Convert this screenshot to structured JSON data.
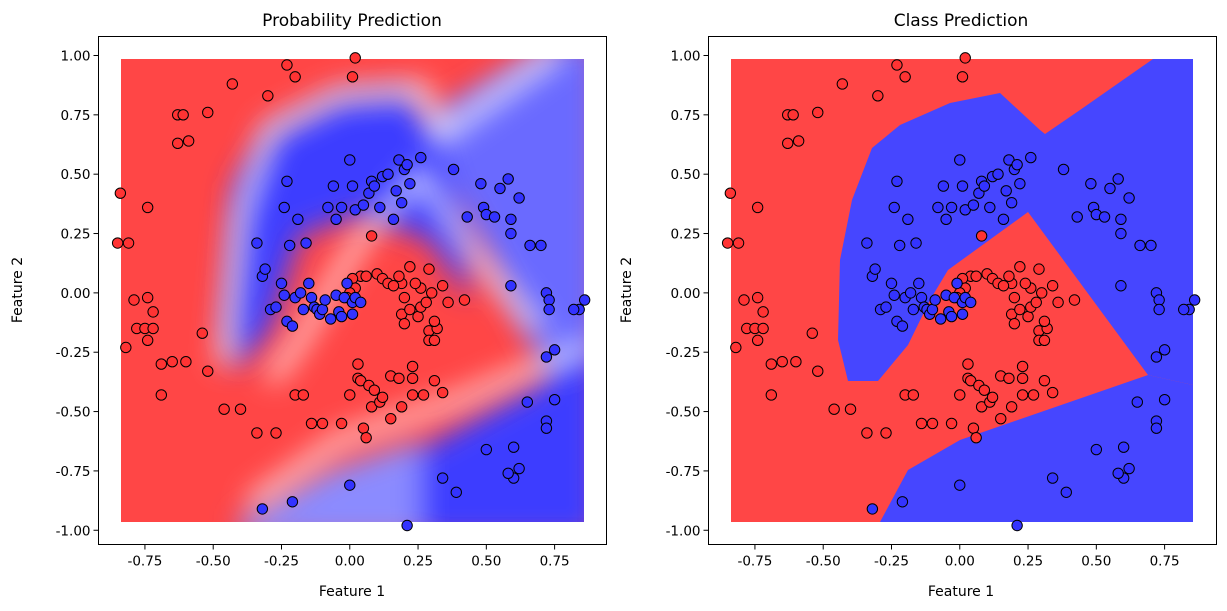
{
  "colors": {
    "class0": "#ff3333",
    "class1": "#3333ff",
    "region_red": "#ff4646",
    "region_blue": "#4646ff",
    "marker_edge": "#000000"
  },
  "chart_data": [
    {
      "type": "scatter",
      "title": "Probability Prediction",
      "xlabel": "Feature 1",
      "ylabel": "Feature 2",
      "background": "probability-gradient",
      "xlim": [
        -0.92,
        0.94
      ],
      "ylim": [
        -1.06,
        1.08
      ],
      "xticks": [
        "-0.75",
        "-0.50",
        "-0.25",
        "0.00",
        "0.25",
        "0.50",
        "0.75"
      ],
      "yticks": [
        "1.00",
        "0.75",
        "0.50",
        "0.25",
        "0.00",
        "-0.25",
        "-0.50",
        "-0.75",
        "-1.00"
      ],
      "grid": false,
      "legend": "none"
    },
    {
      "type": "scatter",
      "title": "Class Prediction",
      "xlabel": "Feature 1",
      "ylabel": "Feature 2",
      "background": "class-regions",
      "xlim": [
        -0.92,
        0.94
      ],
      "ylim": [
        -1.06,
        1.08
      ],
      "xticks": [
        "-0.75",
        "-0.50",
        "-0.25",
        "0.00",
        "0.25",
        "0.50",
        "0.75"
      ],
      "yticks": [
        "1.00",
        "0.75",
        "0.50",
        "0.25",
        "0.00",
        "-0.25",
        "-0.50",
        "-0.75",
        "-1.00"
      ],
      "grid": false,
      "legend": "none"
    }
  ],
  "points": {
    "class0": [
      [
        -0.85,
        0.21
      ],
      [
        -0.84,
        0.42
      ],
      [
        -0.81,
        0.21
      ],
      [
        -0.82,
        -0.23
      ],
      [
        -0.79,
        -0.03
      ],
      [
        -0.78,
        -0.15
      ],
      [
        -0.75,
        -0.15
      ],
      [
        -0.74,
        -0.2
      ],
      [
        -0.74,
        -0.02
      ],
      [
        -0.74,
        0.36
      ],
      [
        -0.72,
        -0.08
      ],
      [
        -0.72,
        -0.15
      ],
      [
        -0.69,
        -0.3
      ],
      [
        -0.69,
        -0.43
      ],
      [
        -0.65,
        -0.29
      ],
      [
        -0.63,
        0.63
      ],
      [
        -0.63,
        0.75
      ],
      [
        -0.61,
        0.75
      ],
      [
        -0.6,
        -0.29
      ],
      [
        -0.59,
        0.64
      ],
      [
        -0.54,
        -0.17
      ],
      [
        -0.52,
        -0.33
      ],
      [
        -0.52,
        0.76
      ],
      [
        -0.46,
        -0.49
      ],
      [
        -0.43,
        0.88
      ],
      [
        -0.4,
        -0.49
      ],
      [
        -0.34,
        -0.59
      ],
      [
        -0.3,
        0.83
      ],
      [
        -0.27,
        -0.59
      ],
      [
        -0.23,
        0.96
      ],
      [
        -0.2,
        0.91
      ],
      [
        -0.2,
        -0.43
      ],
      [
        -0.17,
        -0.43
      ],
      [
        -0.14,
        -0.55
      ],
      [
        -0.1,
        -0.55
      ],
      [
        -0.03,
        -0.55
      ],
      [
        0.0,
        -0.43
      ],
      [
        0.01,
        0.91
      ],
      [
        0.02,
        0.99
      ],
      [
        0.03,
        -0.3
      ],
      [
        0.03,
        -0.36
      ],
      [
        0.04,
        -0.37
      ],
      [
        0.05,
        -0.57
      ],
      [
        0.06,
        -0.61
      ],
      [
        0.07,
        -0.39
      ],
      [
        0.08,
        -0.48
      ],
      [
        0.09,
        -0.41
      ],
      [
        0.11,
        -0.46
      ],
      [
        0.12,
        -0.44
      ],
      [
        0.15,
        -0.35
      ],
      [
        0.15,
        -0.53
      ],
      [
        0.18,
        -0.36
      ],
      [
        0.19,
        -0.48
      ],
      [
        0.23,
        -0.31
      ],
      [
        0.23,
        -0.36
      ],
      [
        0.23,
        -0.43
      ],
      [
        0.27,
        -0.43
      ],
      [
        0.29,
        -0.16
      ],
      [
        0.29,
        -0.2
      ],
      [
        0.31,
        -0.37
      ],
      [
        0.32,
        -0.15
      ],
      [
        0.31,
        -0.2
      ],
      [
        0.34,
        -0.42
      ],
      [
        0.29,
        0.1
      ],
      [
        0.26,
        0.02
      ],
      [
        0.24,
        0.04
      ],
      [
        0.22,
        0.11
      ],
      [
        0.19,
        0.04
      ],
      [
        0.19,
        -0.09
      ],
      [
        0.2,
        -0.02
      ],
      [
        0.22,
        -0.07
      ],
      [
        0.25,
        -0.1
      ],
      [
        0.08,
        0.24
      ],
      [
        0.04,
        0.07
      ],
      [
        0.06,
        0.07
      ],
      [
        0.01,
        0.06
      ],
      [
        0.02,
        0.02
      ],
      [
        0.0,
        0.0
      ],
      [
        -0.01,
        -0.02
      ],
      [
        0.1,
        0.08
      ],
      [
        0.12,
        0.06
      ],
      [
        0.14,
        0.04
      ],
      [
        0.16,
        0.03
      ],
      [
        0.18,
        0.07
      ],
      [
        0.26,
        -0.06
      ],
      [
        0.28,
        -0.04
      ],
      [
        0.31,
        -0.12
      ],
      [
        0.34,
        0.03
      ],
      [
        0.36,
        -0.04
      ],
      [
        0.42,
        -0.03
      ],
      [
        0.2,
        -0.13
      ],
      [
        0.3,
        0.0
      ]
    ],
    "class1": [
      [
        -0.32,
        -0.91
      ],
      [
        -0.21,
        -0.88
      ],
      [
        -0.34,
        0.21
      ],
      [
        -0.32,
        0.07
      ],
      [
        -0.31,
        0.1
      ],
      [
        -0.29,
        -0.07
      ],
      [
        -0.27,
        -0.06
      ],
      [
        -0.25,
        0.04
      ],
      [
        -0.24,
        -0.01
      ],
      [
        -0.24,
        0.36
      ],
      [
        -0.23,
        -0.12
      ],
      [
        -0.23,
        0.47
      ],
      [
        -0.22,
        0.2
      ],
      [
        -0.21,
        -0.14
      ],
      [
        -0.2,
        -0.02
      ],
      [
        -0.19,
        0.31
      ],
      [
        -0.18,
        0.0
      ],
      [
        -0.17,
        -0.07
      ],
      [
        -0.16,
        0.21
      ],
      [
        -0.15,
        0.04
      ],
      [
        -0.14,
        -0.02
      ],
      [
        -0.13,
        -0.06
      ],
      [
        -0.12,
        -0.07
      ],
      [
        -0.11,
        -0.09
      ],
      [
        -0.1,
        -0.07
      ],
      [
        -0.09,
        -0.03
      ],
      [
        -0.08,
        0.36
      ],
      [
        -0.07,
        -0.11
      ],
      [
        -0.06,
        0.45
      ],
      [
        -0.05,
        -0.01
      ],
      [
        -0.05,
        0.31
      ],
      [
        -0.04,
        -0.08
      ],
      [
        -0.03,
        -0.1
      ],
      [
        -0.03,
        0.36
      ],
      [
        -0.02,
        -0.02
      ],
      [
        -0.01,
        0.04
      ],
      [
        0.0,
        0.56
      ],
      [
        0.01,
        -0.04
      ],
      [
        0.01,
        0.45
      ],
      [
        0.01,
        -0.09
      ],
      [
        0.02,
        0.35
      ],
      [
        0.02,
        -0.02
      ],
      [
        0.04,
        -0.04
      ],
      [
        0.05,
        0.37
      ],
      [
        0.07,
        0.42
      ],
      [
        0.08,
        0.47
      ],
      [
        0.09,
        0.45
      ],
      [
        0.11,
        0.36
      ],
      [
        0.12,
        0.49
      ],
      [
        0.14,
        0.5
      ],
      [
        0.16,
        0.31
      ],
      [
        0.17,
        0.43
      ],
      [
        0.18,
        0.56
      ],
      [
        0.19,
        0.38
      ],
      [
        0.2,
        0.52
      ],
      [
        0.21,
        0.54
      ],
      [
        0.22,
        0.46
      ],
      [
        0.26,
        0.57
      ],
      [
        0.38,
        0.52
      ],
      [
        0.43,
        0.32
      ],
      [
        0.48,
        0.46
      ],
      [
        0.49,
        0.36
      ],
      [
        0.5,
        0.33
      ],
      [
        0.53,
        0.32
      ],
      [
        0.55,
        0.44
      ],
      [
        0.58,
        0.48
      ],
      [
        0.59,
        0.31
      ],
      [
        0.59,
        0.25
      ],
      [
        0.62,
        0.4
      ],
      [
        0.66,
        0.2
      ],
      [
        0.7,
        0.2
      ],
      [
        0.72,
        0.0
      ],
      [
        0.73,
        -0.03
      ],
      [
        0.73,
        -0.07
      ],
      [
        0.75,
        -0.24
      ],
      [
        0.72,
        -0.27
      ],
      [
        0.72,
        -0.54
      ],
      [
        0.75,
        -0.45
      ],
      [
        0.72,
        -0.57
      ],
      [
        0.65,
        -0.46
      ],
      [
        0.62,
        -0.74
      ],
      [
        0.6,
        -0.78
      ],
      [
        0.6,
        -0.65
      ],
      [
        0.58,
        -0.76
      ],
      [
        0.5,
        -0.66
      ],
      [
        0.39,
        -0.84
      ],
      [
        0.34,
        -0.78
      ],
      [
        0.0,
        -0.81
      ],
      [
        0.21,
        -0.98
      ],
      [
        0.86,
        -0.03
      ],
      [
        0.84,
        -0.07
      ],
      [
        0.82,
        -0.07
      ],
      [
        0.59,
        0.03
      ]
    ]
  }
}
